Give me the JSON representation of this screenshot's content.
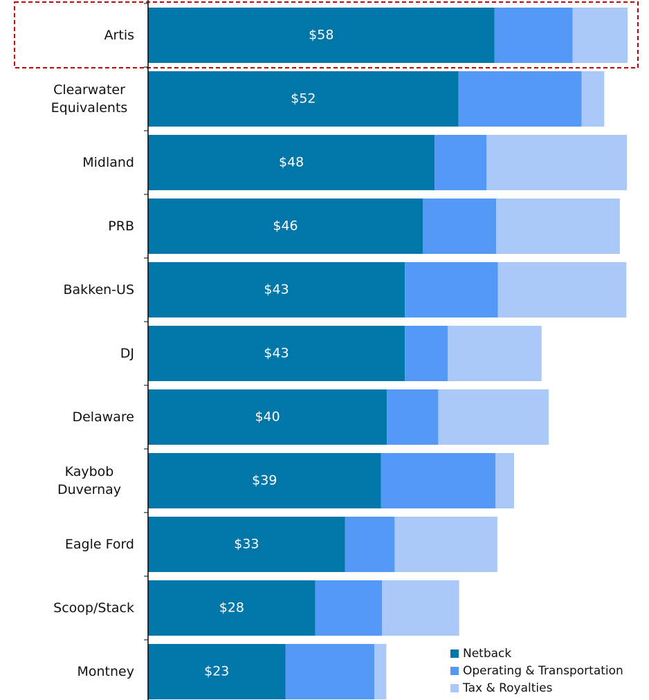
{
  "chart_data": {
    "type": "stacked-bar-horizontal",
    "categories": [
      "Artis",
      "Clearwater Equivalents",
      "Midland",
      "PRB",
      "Bakken-US",
      "DJ",
      "Delaware",
      "Kaybob Duvernay",
      "Eagle Ford",
      "Scoop/Stack",
      "Montney"
    ],
    "series": [
      {
        "name": "Netback",
        "color": "#0077a8",
        "values": [
          58,
          52,
          48,
          46,
          43,
          43,
          40,
          39,
          33,
          28,
          23
        ],
        "value_labels": [
          "$58",
          "$52",
          "$48",
          "$46",
          "$43",
          "$43",
          "$40",
          "$39",
          "$33",
          "$28",
          "$23"
        ]
      },
      {
        "name": "Operating & Transportation",
        "color": "#5599f7",
        "values": [
          13.1,
          20.6,
          8.7,
          12.3,
          15.6,
          7.2,
          8.6,
          19.2,
          8.3,
          11.2,
          14.9
        ]
      },
      {
        "name": "Tax & Royalties",
        "color": "#aac8f8",
        "values": [
          9.2,
          3.8,
          23.5,
          20.7,
          21.5,
          15.7,
          18.5,
          3.1,
          17.2,
          12.9,
          2.0
        ]
      }
    ],
    "legend": "lower right"
  }
}
